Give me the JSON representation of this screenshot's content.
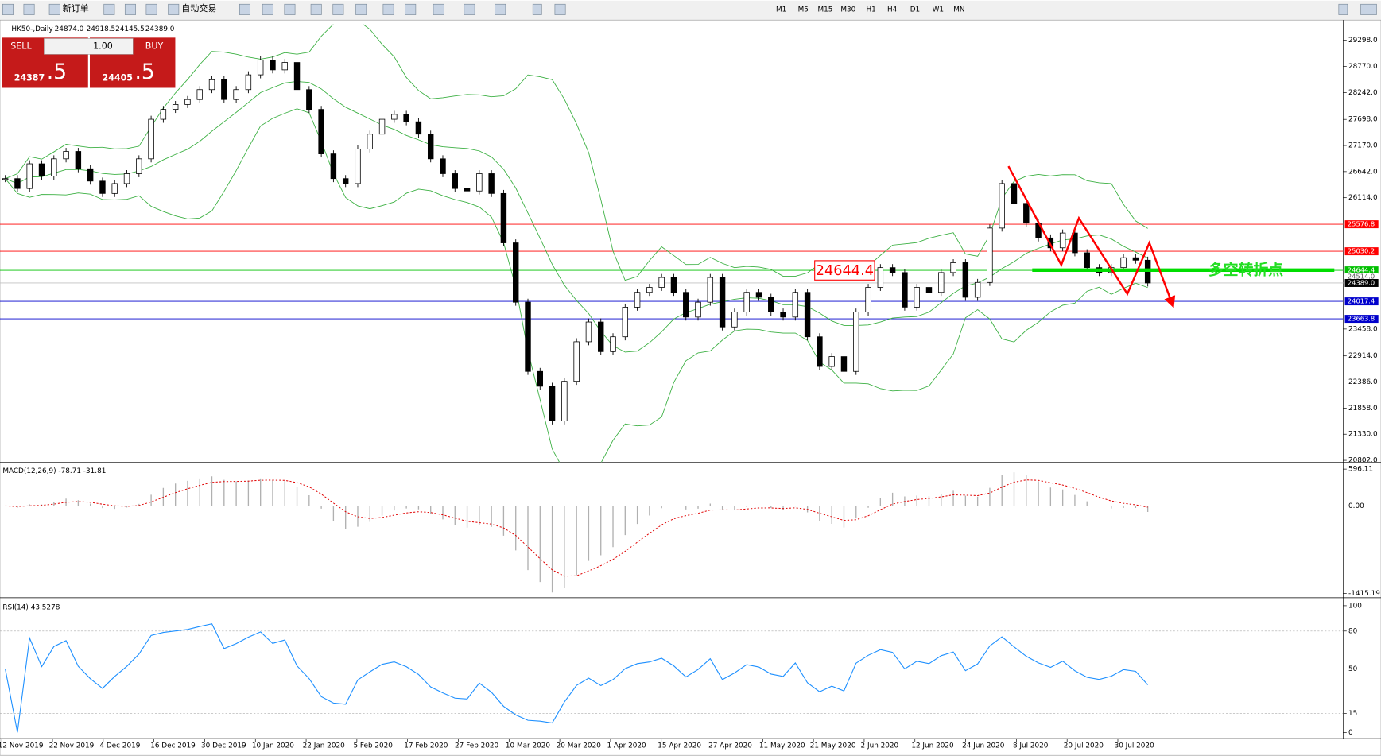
{
  "toolbar": {
    "new_order": "新订单",
    "auto_trading": "自动交易",
    "timeframes": [
      "M1",
      "M5",
      "M15",
      "M30",
      "H1",
      "H4",
      "D1",
      "W1",
      "MN"
    ]
  },
  "trade_panel": {
    "sell": "SELL",
    "buy": "BUY",
    "volume": "1.00",
    "bid_main": "24387",
    "bid_frac": ".5",
    "ask_main": "24405",
    "ask_frac": ".5"
  },
  "chart_data": {
    "type": "candlestick",
    "symbol": "HK50-,Daily",
    "header_values": [
      "24874.0",
      "24918.5",
      "24145.5",
      "24389.0"
    ],
    "closes": [
      26500,
      26300,
      26800,
      26550,
      26900,
      27050,
      26700,
      26450,
      26200,
      26400,
      26600,
      26900,
      27700,
      27900,
      28000,
      28100,
      28300,
      28500,
      28100,
      28300,
      28600,
      28900,
      28700,
      28850,
      28300,
      27900,
      27000,
      26500,
      26400,
      27100,
      27400,
      27700,
      27800,
      27650,
      27400,
      26900,
      26600,
      26300,
      26250,
      26600,
      26200,
      25200,
      24000,
      22600,
      22300,
      21600,
      22400,
      23200,
      23600,
      23000,
      23300,
      23900,
      24200,
      24300,
      24500,
      24200,
      23700,
      24000,
      24500,
      23500,
      23800,
      24200,
      24100,
      23800,
      23700,
      24200,
      23300,
      22700,
      22900,
      22600,
      23800,
      24300,
      24700,
      24600,
      23900,
      24300,
      24200,
      24600,
      24800,
      24100,
      24400,
      25500,
      26400,
      26000,
      25600,
      25300,
      25100,
      25400,
      25000,
      24700,
      24600,
      24700,
      24900,
      24850,
      24389
    ],
    "ylim": [
      20766,
      29619
    ],
    "yticks": [
      {
        "value": 29298,
        "label": "29298.0"
      },
      {
        "value": 28770,
        "label": "28770.0"
      },
      {
        "value": 28242,
        "label": "28242.0"
      },
      {
        "value": 27698,
        "label": "27698.0"
      },
      {
        "value": 27170,
        "label": "27170.0"
      },
      {
        "value": 26642,
        "label": "26642.0"
      },
      {
        "value": 26114,
        "label": "26114.0"
      },
      {
        "value": 23458,
        "label": "23458.0"
      },
      {
        "value": 22914,
        "label": "22914.0"
      },
      {
        "value": 22386,
        "label": "22386.0"
      },
      {
        "value": 21858,
        "label": "21858.0"
      },
      {
        "value": 21330,
        "label": "21330.0"
      },
      {
        "value": 20802,
        "label": "20802.0"
      }
    ],
    "levels": [
      {
        "value": 25576.8,
        "label": "25576.8",
        "color": "#ff0000"
      },
      {
        "value": 25030.2,
        "label": "25030.2",
        "color": "#ff0000"
      },
      {
        "value": 24644.4,
        "label": "24644.4",
        "color": "#00c000"
      },
      {
        "value": 24514,
        "label": "24514.0",
        "color": "#a0a0a0"
      },
      {
        "value": 24389,
        "label": "24389.0",
        "color": "#000000"
      },
      {
        "value": 24017.4,
        "label": "24017.4",
        "color": "#0000cc"
      },
      {
        "value": 23663.8,
        "label": "23663.8",
        "color": "#0000cc"
      }
    ],
    "dates": [
      "12 Nov 2019",
      "22 Nov 2019",
      "4 Dec 2019",
      "16 Dec 2019",
      "30 Dec 2019",
      "10 Jan 2020",
      "22 Jan 2020",
      "5 Feb 2020",
      "17 Feb 2020",
      "27 Feb 2020",
      "10 Mar 2020",
      "20 Mar 2020",
      "1 Apr 2020",
      "15 Apr 2020",
      "27 Apr 2020",
      "11 May 2020",
      "21 May 2020",
      "2 Jun 2020",
      "12 Jun 2020",
      "24 Jun 2020",
      "8 Jul 2020",
      "20 Jul 2020",
      "30 Jul 2020"
    ],
    "turning_point": "多空转折点",
    "macd": {
      "label": "MACD(12,26,9) -78.71 -31.81",
      "ylim": [
        -1472,
        667
      ],
      "yticks": [
        {
          "value": 596.11,
          "label": "596.11"
        },
        {
          "value": 0,
          "label": "0.00"
        },
        {
          "value": -1415.19,
          "label": "-1415.19"
        }
      ]
    },
    "rsi": {
      "label": "RSI(14) 43.5278",
      "ylim": [
        -4.9,
        104.2
      ],
      "yticks": [
        100,
        80,
        50,
        15,
        0
      ]
    }
  }
}
